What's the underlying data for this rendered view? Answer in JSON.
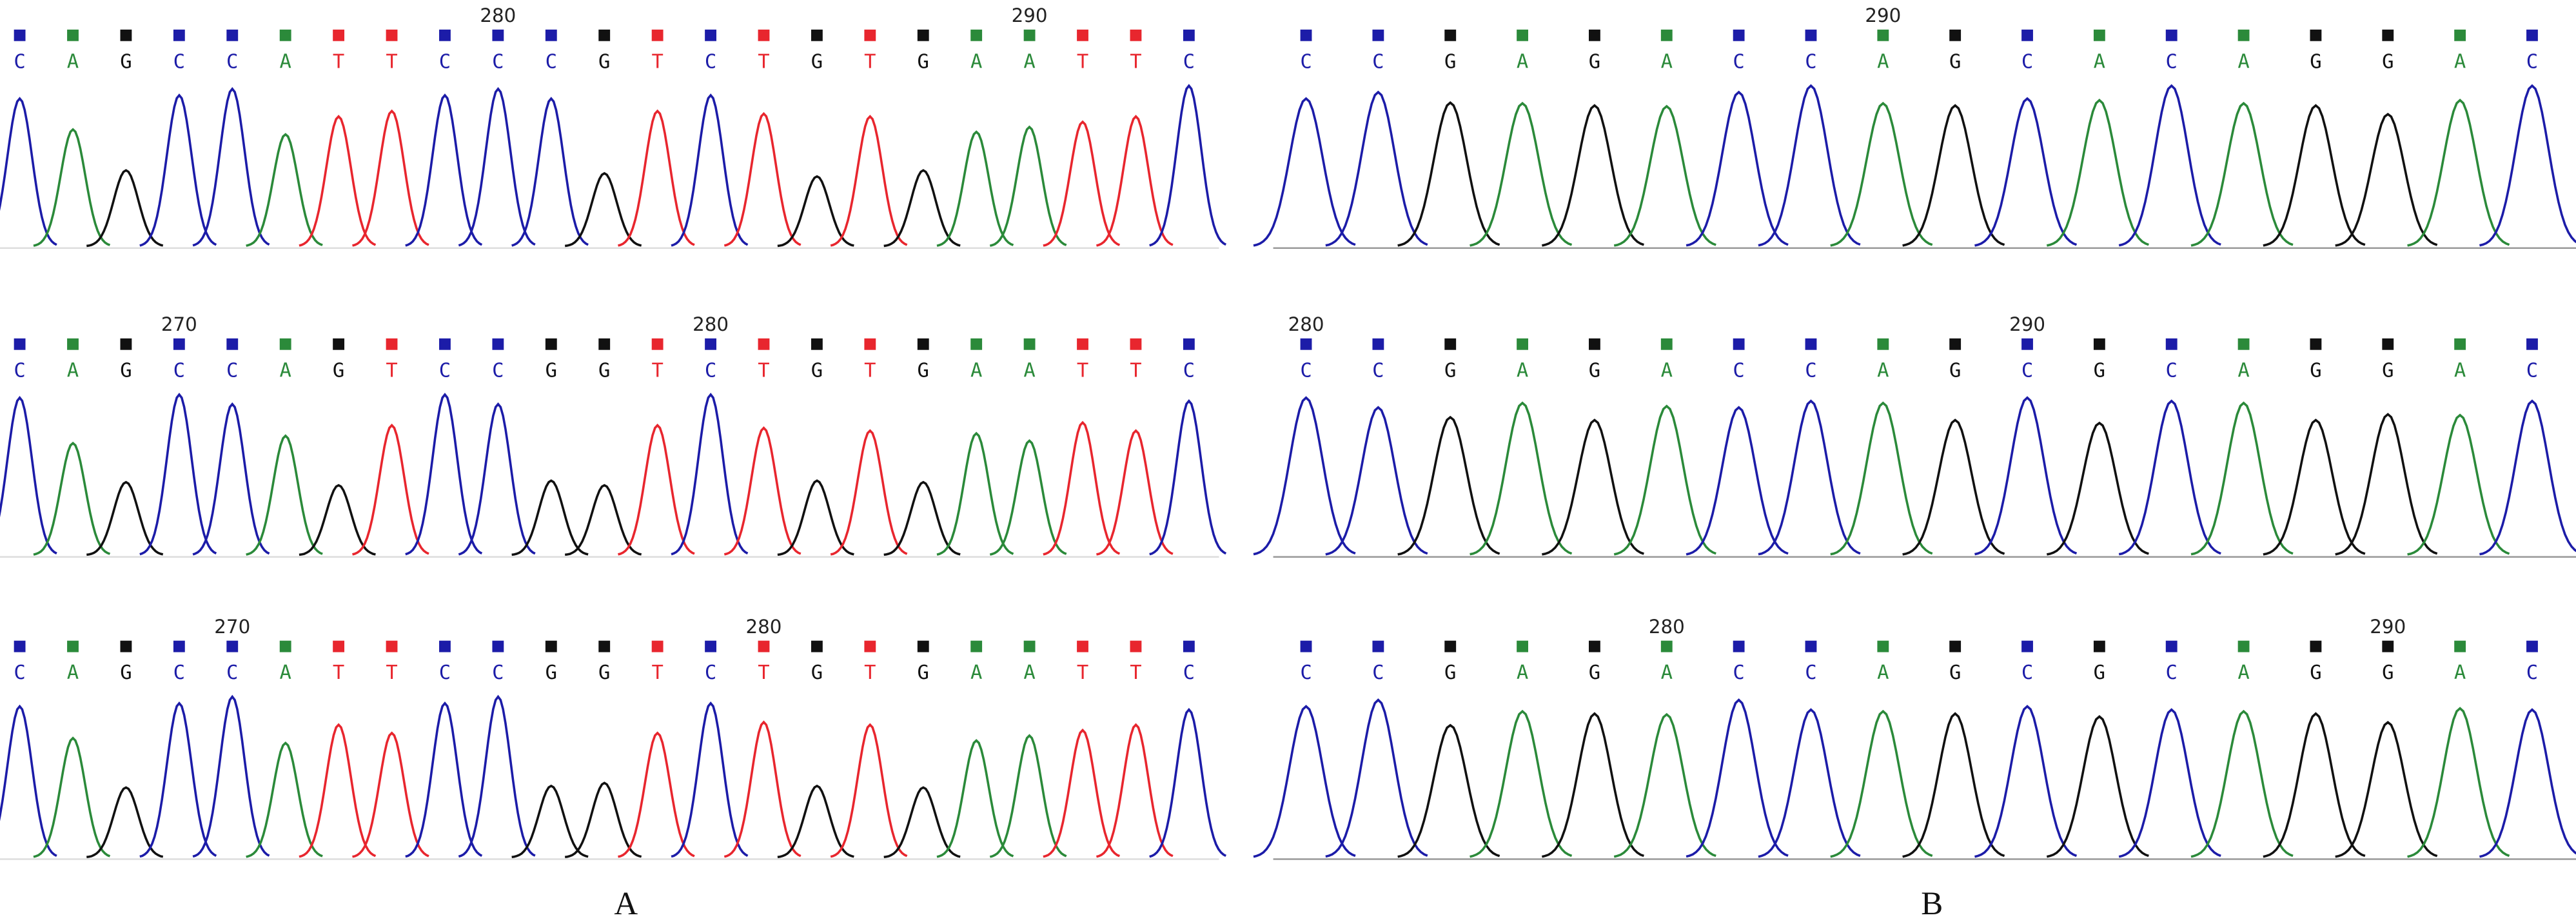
{
  "panels": [
    {
      "label": "A",
      "traces": [
        {
          "bases": [
            "C",
            "A",
            "G",
            "C",
            "C",
            "A",
            "T",
            "T",
            "C",
            "C",
            "C",
            "G",
            "T",
            "C",
            "T",
            "G",
            "T",
            "G",
            "A",
            "A",
            "T",
            "T",
            "C"
          ],
          "position_labels": [
            null,
            null,
            null,
            null,
            null,
            null,
            null,
            null,
            null,
            "280",
            null,
            null,
            null,
            null,
            null,
            null,
            null,
            null,
            null,
            "290",
            null,
            null,
            null
          ]
        },
        {
          "bases": [
            "C",
            "A",
            "G",
            "C",
            "C",
            "A",
            "G",
            "T",
            "C",
            "C",
            "G",
            "G",
            "T",
            "C",
            "T",
            "G",
            "T",
            "G",
            "A",
            "A",
            "T",
            "T",
            "C"
          ],
          "position_labels": [
            null,
            null,
            null,
            "270",
            null,
            null,
            null,
            null,
            null,
            null,
            null,
            null,
            null,
            "280",
            null,
            null,
            null,
            null,
            null,
            null,
            null,
            null,
            null
          ]
        },
        {
          "bases": [
            "C",
            "A",
            "G",
            "C",
            "C",
            "A",
            "T",
            "T",
            "C",
            "C",
            "G",
            "G",
            "T",
            "C",
            "T",
            "G",
            "T",
            "G",
            "A",
            "A",
            "T",
            "T",
            "C"
          ],
          "position_labels": [
            null,
            null,
            null,
            null,
            "270",
            null,
            null,
            null,
            null,
            null,
            null,
            null,
            null,
            null,
            "280",
            null,
            null,
            null,
            null,
            null,
            null,
            null,
            null
          ]
        }
      ]
    },
    {
      "label": "B",
      "traces": [
        {
          "bases": [
            "C",
            "C",
            "G",
            "A",
            "G",
            "A",
            "C",
            "C",
            "A",
            "G",
            "C",
            "A",
            "C",
            "A",
            "G",
            "G",
            "A",
            "C"
          ],
          "position_labels": [
            null,
            null,
            null,
            null,
            null,
            null,
            null,
            null,
            "290",
            null,
            null,
            null,
            null,
            null,
            null,
            null,
            null,
            null
          ]
        },
        {
          "bases": [
            "C",
            "C",
            "G",
            "A",
            "G",
            "A",
            "C",
            "C",
            "A",
            "G",
            "C",
            "G",
            "C",
            "A",
            "G",
            "G",
            "A",
            "C"
          ],
          "position_labels": [
            "280",
            null,
            null,
            null,
            null,
            null,
            null,
            null,
            null,
            null,
            "290",
            null,
            null,
            null,
            null,
            null,
            null,
            null
          ]
        },
        {
          "bases": [
            "C",
            "C",
            "G",
            "A",
            "G",
            "A",
            "C",
            "C",
            "A",
            "G",
            "C",
            "G",
            "C",
            "A",
            "G",
            "G",
            "A",
            "C"
          ],
          "position_labels": [
            null,
            null,
            null,
            null,
            null,
            "280",
            null,
            null,
            null,
            null,
            null,
            null,
            null,
            null,
            null,
            "290",
            null,
            null
          ]
        }
      ]
    }
  ]
}
